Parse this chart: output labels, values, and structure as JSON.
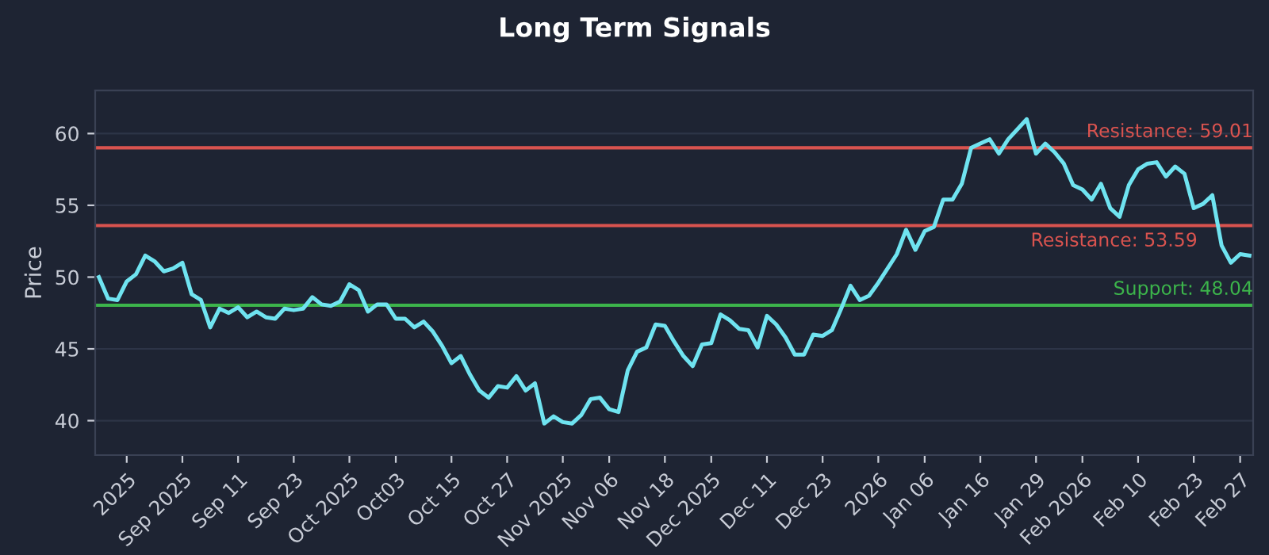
{
  "chart_data": {
    "type": "line",
    "title": "Long Term Signals",
    "ylabel": "Price",
    "categories": [
      null,
      null,
      null,
      "2025",
      null,
      null,
      null,
      null,
      null,
      "Sep 2025",
      null,
      null,
      null,
      null,
      null,
      "Sep 11",
      null,
      null,
      null,
      null,
      null,
      "Sep 23",
      null,
      null,
      null,
      null,
      null,
      "Oct 2025",
      null,
      null,
      null,
      null,
      "Oct03",
      null,
      null,
      null,
      null,
      null,
      "Oct 15",
      null,
      null,
      null,
      null,
      null,
      "Oct 27",
      null,
      null,
      null,
      null,
      null,
      "Nov 2025",
      null,
      null,
      null,
      null,
      "Nov 06",
      null,
      null,
      null,
      null,
      null,
      "Nov 18",
      null,
      null,
      null,
      null,
      "Dec 2025",
      null,
      null,
      null,
      null,
      null,
      "Dec 11",
      null,
      null,
      null,
      null,
      null,
      "Dec 23",
      null,
      null,
      null,
      null,
      null,
      "2026",
      null,
      null,
      null,
      null,
      "Jan 06",
      null,
      null,
      null,
      null,
      null,
      "Jan 16",
      null,
      null,
      null,
      null,
      null,
      "Jan 29",
      null,
      null,
      null,
      null,
      "Feb 2026",
      null,
      null,
      null,
      null,
      null,
      "Feb 10",
      null,
      null,
      null,
      null,
      null,
      "Feb 23",
      null,
      null,
      null,
      null,
      "Feb 27",
      null
    ],
    "series": [
      {
        "color": "#6fe3f0",
        "values": [
          50.0,
          48.5,
          48.4,
          49.7,
          50.2,
          51.5,
          51.1,
          50.4,
          50.6,
          51.0,
          48.8,
          48.4,
          46.5,
          47.8,
          47.5,
          47.9,
          47.2,
          47.6,
          47.2,
          47.1,
          47.8,
          47.7,
          47.8,
          48.6,
          48.1,
          48.0,
          48.3,
          49.5,
          49.1,
          47.6,
          48.1,
          48.1,
          47.1,
          47.1,
          46.5,
          46.9,
          46.2,
          45.2,
          44.0,
          44.5,
          43.2,
          42.1,
          41.6,
          42.4,
          42.3,
          43.1,
          42.1,
          42.6,
          39.8,
          40.3,
          39.9,
          39.8,
          40.4,
          41.5,
          41.6,
          40.8,
          40.6,
          43.5,
          44.8,
          45.1,
          46.7,
          46.6,
          45.5,
          44.5,
          43.8,
          45.3,
          45.4,
          47.4,
          47.0,
          46.4,
          46.3,
          45.1,
          47.3,
          46.7,
          45.8,
          44.6,
          44.6,
          46.0,
          45.9,
          46.3,
          47.8,
          49.4,
          48.4,
          48.7,
          49.6,
          50.6,
          51.6,
          53.3,
          51.9,
          53.2,
          53.5,
          55.4,
          55.4,
          56.5,
          59.0,
          59.3,
          59.6,
          58.6,
          59.6,
          60.3,
          61.0,
          58.6,
          59.3,
          58.7,
          57.9,
          56.4,
          56.1,
          55.4,
          56.5,
          54.8,
          54.2,
          56.4,
          57.5,
          57.9,
          58.0,
          57.0,
          57.7,
          57.2,
          54.8,
          55.1,
          55.7,
          52.2,
          51.0,
          51.6,
          51.5
        ]
      }
    ],
    "ylim": [
      37.6,
      63
    ],
    "yticks": [
      40,
      45,
      50,
      55,
      60
    ],
    "grid": "y",
    "marker": "none",
    "line_style": "solid",
    "ref_lines": [
      {
        "axis": "y",
        "value": 59.01,
        "label": "Resistance: 59.01",
        "color": "#d9534f"
      },
      {
        "axis": "y",
        "value": 53.59,
        "label": "Resistance: 53.59",
        "color": "#d9534f"
      },
      {
        "axis": "y",
        "value": 48.04,
        "label": "Support: 48.04",
        "color": "#3cb44b"
      }
    ]
  }
}
